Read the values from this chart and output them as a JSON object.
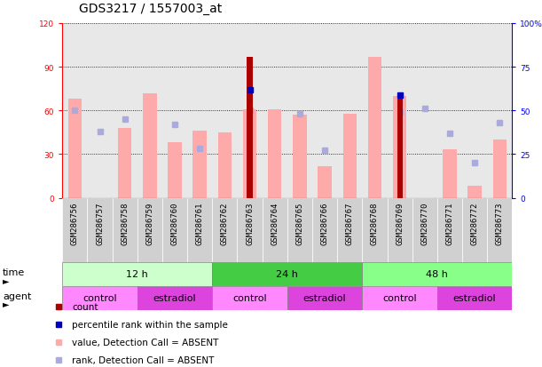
{
  "title": "GDS3217 / 1557003_at",
  "samples": [
    "GSM286756",
    "GSM286757",
    "GSM286758",
    "GSM286759",
    "GSM286760",
    "GSM286761",
    "GSM286762",
    "GSM286763",
    "GSM286764",
    "GSM286765",
    "GSM286766",
    "GSM286767",
    "GSM286768",
    "GSM286769",
    "GSM286770",
    "GSM286771",
    "GSM286772",
    "GSM286773"
  ],
  "count_values": [
    0,
    0,
    0,
    0,
    0,
    0,
    0,
    97,
    0,
    0,
    0,
    0,
    0,
    68,
    0,
    0,
    0,
    0
  ],
  "percentile_rank": [
    0,
    0,
    0,
    0,
    0,
    0,
    0,
    62,
    0,
    0,
    0,
    0,
    0,
    59,
    0,
    0,
    0,
    0
  ],
  "value_absent": [
    68,
    0,
    48,
    72,
    38,
    46,
    45,
    61,
    61,
    57,
    22,
    58,
    97,
    70,
    0,
    33,
    8,
    40
  ],
  "rank_absent": [
    50,
    38,
    45,
    0,
    42,
    28,
    0,
    50,
    0,
    48,
    27,
    0,
    0,
    49,
    51,
    37,
    20,
    43
  ],
  "time_groups": [
    {
      "label": "12 h",
      "start": 0,
      "end": 6,
      "color": "#ccffcc"
    },
    {
      "label": "24 h",
      "start": 6,
      "end": 12,
      "color": "#44cc44"
    },
    {
      "label": "48 h",
      "start": 12,
      "end": 18,
      "color": "#88ff88"
    }
  ],
  "agent_groups": [
    {
      "label": "control",
      "start": 0,
      "end": 3,
      "color": "#ff88ff"
    },
    {
      "label": "estradiol",
      "start": 3,
      "end": 6,
      "color": "#dd44dd"
    },
    {
      "label": "control",
      "start": 6,
      "end": 9,
      "color": "#ff88ff"
    },
    {
      "label": "estradiol",
      "start": 9,
      "end": 12,
      "color": "#dd44dd"
    },
    {
      "label": "control",
      "start": 12,
      "end": 15,
      "color": "#ff88ff"
    },
    {
      "label": "estradiol",
      "start": 15,
      "end": 18,
      "color": "#dd44dd"
    }
  ],
  "ylim_left": [
    0,
    120
  ],
  "ylim_right": [
    0,
    100
  ],
  "yticks_left": [
    0,
    30,
    60,
    90,
    120
  ],
  "yticks_right": [
    0,
    25,
    50,
    75,
    100
  ],
  "ytick_labels_left": [
    "0",
    "30",
    "60",
    "90",
    "120"
  ],
  "ytick_labels_right": [
    "0",
    "25",
    "50",
    "75",
    "100%"
  ],
  "count_color": "#aa0000",
  "rank_color": "#0000bb",
  "value_absent_color": "#ffaaaa",
  "rank_absent_color": "#aaaadd",
  "title_fontsize": 10,
  "tick_fontsize": 6.5,
  "label_fontsize": 8,
  "legend_fontsize": 7.5
}
